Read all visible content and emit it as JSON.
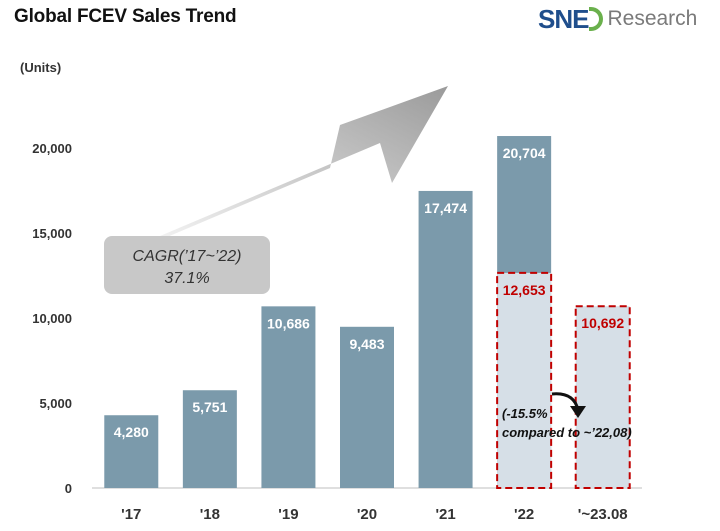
{
  "header": {
    "title": "Global FCEV Sales Trend"
  },
  "logo": {
    "brand": "SNE",
    "suffix": "Research"
  },
  "chart_data": {
    "type": "bar",
    "title": "Global FCEV Sales Trend",
    "ylabel": "(Units)",
    "ylim": [
      0,
      20000
    ],
    "yticks": [
      "0",
      "5,000",
      "10,000",
      "15,000",
      "20,000"
    ],
    "categories": [
      "'17",
      "'18",
      "'19",
      "'20",
      "'21",
      "'22",
      "'~23.08"
    ],
    "values": [
      4280,
      5751,
      10686,
      9483,
      17474,
      20704,
      null
    ],
    "value_labels": [
      "4,280",
      "5,751",
      "10,686",
      "9,483",
      "17,474",
      "20,704",
      ""
    ],
    "ytd_values": [
      null,
      null,
      null,
      null,
      null,
      12653,
      10692
    ],
    "ytd_labels": [
      "",
      "",
      "",
      "",
      "",
      "12,653",
      "10,692"
    ],
    "colors": {
      "bar": "#7b9aab",
      "ytd_fill": "#d6dfe7",
      "ytd_border": "#c00000",
      "arrow": "#a9a9a9"
    },
    "annotations": {
      "cagr_line1": "CAGR(’17~’22)",
      "cagr_line2": "37.1%",
      "change_line1": "(-15.5%",
      "change_line2": "compared to ~’22,08)"
    }
  }
}
